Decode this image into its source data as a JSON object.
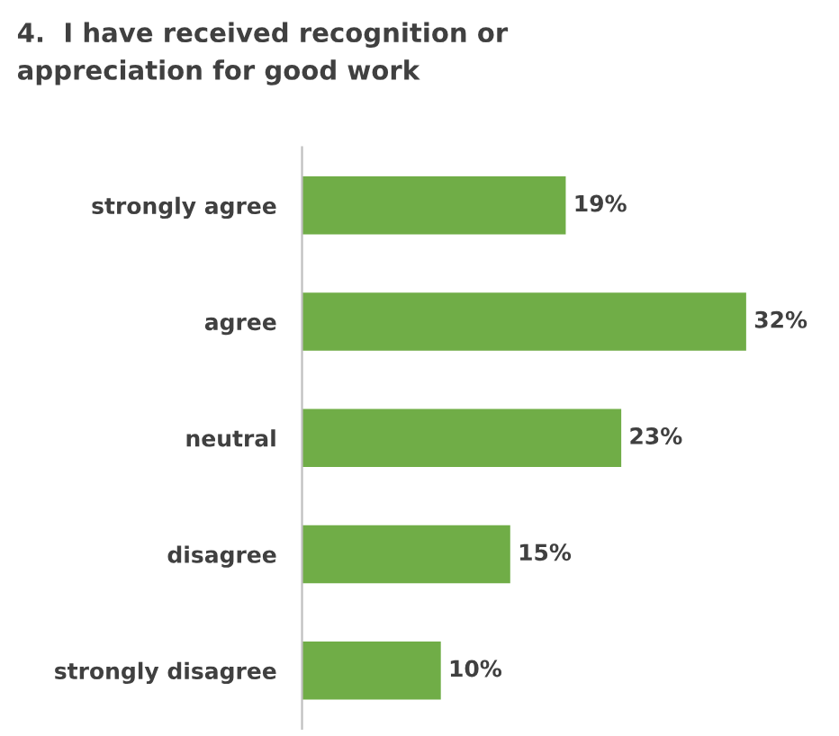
{
  "chart_data": {
    "type": "bar",
    "orientation": "horizontal",
    "title": "4.  I have received recognition or\nappreciation for good work",
    "categories": [
      "strongly agree",
      "agree",
      "neutral",
      "disagree",
      "strongly disagree"
    ],
    "values": [
      19,
      32,
      23,
      15,
      10
    ],
    "value_labels": [
      "19%",
      "32%",
      "23%",
      "15%",
      "10%"
    ],
    "color": "#70ad47",
    "grid": false,
    "legend": false
  }
}
